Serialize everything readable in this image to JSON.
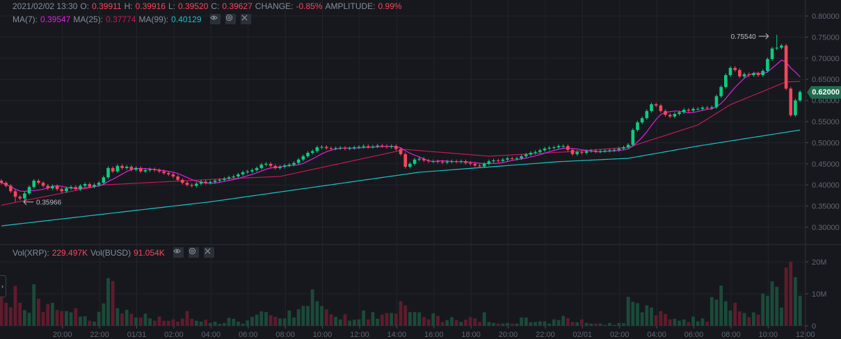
{
  "header": {
    "datetime": "2021/02/02 13:30",
    "o_label": "O:",
    "o": "0.39911",
    "h_label": "H:",
    "h": "0.39916",
    "l_label": "L:",
    "l": "0.39520",
    "c_label": "C:",
    "c": "0.39627",
    "change_label": "CHANGE:",
    "change": "-0.85%",
    "amplitude_label": "AMPLITUDE:",
    "amplitude": "0.99%"
  },
  "ma_legend": {
    "ma7_label": "MA(7):",
    "ma7": "0.39547",
    "ma25_label": "MA(25):",
    "ma25": "0.37774",
    "ma99_label": "MA(99):",
    "ma99": "0.40129"
  },
  "vol_legend": {
    "vol_xrp_label": "Vol(XRP):",
    "vol_xrp": "229.497K",
    "vol_busd_label": "Vol(BUSD)",
    "vol_busd": "91.054K"
  },
  "current_price": "0.62000",
  "colors": {
    "up": "#0ecb81",
    "down": "#f6465d",
    "vol_up": "#1b4a39",
    "vol_down": "#5e1c2c",
    "ma7": "#e41ee4",
    "ma25": "#c2185b",
    "ma99": "#1bc3c3",
    "grid": "#222429",
    "axis_text": "#5e6673"
  },
  "chart_data": {
    "type": "candlestick",
    "interval": "15m",
    "price_axis": {
      "range": [
        0.28,
        0.82
      ],
      "ticks": [
        "0.80000",
        "0.75000",
        "0.70000",
        "0.65000",
        "0.60000",
        "0.55000",
        "0.50000",
        "0.45000",
        "0.40000",
        "0.35000",
        "0.30000"
      ]
    },
    "volume_axis": {
      "range_millions": [
        0,
        22
      ],
      "ticks": [
        {
          "label": "20M",
          "value": 20
        },
        {
          "label": "10M",
          "value": 10
        },
        {
          "label": "0",
          "value": 0
        }
      ]
    },
    "time_labels": [
      "20:00",
      "22:00",
      "01/31",
      "02:00",
      "04:00",
      "06:00",
      "08:00",
      "10:00",
      "12:00",
      "14:00",
      "16:00",
      "18:00",
      "20:00",
      "22:00",
      "02/01",
      "02:00",
      "04:00",
      "06:00",
      "08:00",
      "10:00",
      "12:00"
    ],
    "time_label_first_index": 7,
    "candles_per_label": 8,
    "first_open": 0.41,
    "close": [
      0.405,
      0.398,
      0.385,
      0.372,
      0.368,
      0.38,
      0.395,
      0.41,
      0.405,
      0.398,
      0.392,
      0.397,
      0.39,
      0.385,
      0.392,
      0.395,
      0.39,
      0.398,
      0.402,
      0.396,
      0.4,
      0.405,
      0.418,
      0.44,
      0.432,
      0.445,
      0.44,
      0.443,
      0.436,
      0.44,
      0.432,
      0.435,
      0.437,
      0.435,
      0.432,
      0.428,
      0.425,
      0.42,
      0.412,
      0.405,
      0.4,
      0.398,
      0.403,
      0.408,
      0.405,
      0.407,
      0.41,
      0.412,
      0.415,
      0.418,
      0.42,
      0.425,
      0.43,
      0.432,
      0.435,
      0.44,
      0.448,
      0.45,
      0.445,
      0.44,
      0.443,
      0.446,
      0.448,
      0.452,
      0.46,
      0.468,
      0.476,
      0.48,
      0.489,
      0.49,
      0.487,
      0.486,
      0.487,
      0.488,
      0.486,
      0.487,
      0.489,
      0.49,
      0.492,
      0.49,
      0.491,
      0.493,
      0.492,
      0.49,
      0.492,
      0.485,
      0.473,
      0.443,
      0.45,
      0.46,
      0.462,
      0.458,
      0.456,
      0.456,
      0.455,
      0.453,
      0.455,
      0.456,
      0.455,
      0.456,
      0.452,
      0.45,
      0.446,
      0.444,
      0.45,
      0.456,
      0.458,
      0.457,
      0.46,
      0.463,
      0.462,
      0.463,
      0.468,
      0.472,
      0.476,
      0.478,
      0.482,
      0.486,
      0.488,
      0.489,
      0.492,
      0.492,
      0.483,
      0.473,
      0.478,
      0.476,
      0.48,
      0.481,
      0.479,
      0.48,
      0.481,
      0.482,
      0.483,
      0.486,
      0.489,
      0.495,
      0.53,
      0.548,
      0.558,
      0.575,
      0.591,
      0.588,
      0.575,
      0.566,
      0.562,
      0.568,
      0.572,
      0.578,
      0.576,
      0.58,
      0.58,
      0.583,
      0.582,
      0.584,
      0.61,
      0.632,
      0.66,
      0.677,
      0.672,
      0.657,
      0.662,
      0.66,
      0.664,
      0.66,
      0.67,
      0.698,
      0.723,
      0.725,
      0.73,
      0.628,
      0.565,
      0.6,
      0.62
    ],
    "volume_millions": [
      8.9,
      7.2,
      5.8,
      12.5,
      7.2,
      4.9,
      4.1,
      13,
      8.5,
      4.3,
      6.8,
      7.2,
      4.9,
      4.6,
      4.6,
      4.2,
      5.5,
      2.9,
      3,
      1.6,
      1.3,
      4.4,
      7,
      14.9,
      14,
      5.5,
      3.9,
      5,
      3.8,
      2.6,
      2.6,
      3.8,
      2.3,
      1.6,
      2.9,
      1.6,
      1.6,
      2,
      1.3,
      2.3,
      4.6,
      2.2,
      1.6,
      1.3,
      1.9,
      0.9,
      1.3,
      0.6,
      0.9,
      2.5,
      2.2,
      1.3,
      0.7,
      1.7,
      2.8,
      3.5,
      4.5,
      4.3,
      3.3,
      2.8,
      2.3,
      2.3,
      4.8,
      2.6,
      5.2,
      6.2,
      6.2,
      11.4,
      7.7,
      6.2,
      5.2,
      3.6,
      2.8,
      2,
      3.6,
      1.6,
      1.9,
      2,
      4.8,
      2,
      4.3,
      2.2,
      3.5,
      4,
      4,
      3.8,
      7.7,
      6.4,
      4.3,
      4.3,
      4.2,
      2.7,
      2,
      3.9,
      3.1,
      1.2,
      1.8,
      2.7,
      1.8,
      1.2,
      1.9,
      2.7,
      2.3,
      1.2,
      4.2,
      1.2,
      0.9,
      0.7,
      0.7,
      0.9,
      0.7,
      0.7,
      2.6,
      2.6,
      1.1,
      1.2,
      1.4,
      1.4,
      0.7,
      2,
      1.8,
      3.1,
      2.4,
      1.2,
      1.1,
      2,
      0.9,
      0.7,
      0.7,
      0.7,
      0.3,
      0.9,
      0.3,
      0.9,
      0.8,
      9.1,
      7.5,
      7.1,
      4.2,
      6.4,
      5.7,
      3.3,
      4.6,
      3.7,
      2,
      2.2,
      1.6,
      2,
      1.2,
      2.9,
      1.4,
      2.3,
      1.3,
      9,
      8.2,
      12.6,
      7.7,
      4.8,
      7.2,
      4.5,
      4,
      2.7,
      4.2,
      3.5,
      10.1,
      9.4,
      13.9,
      12.2,
      5.7,
      18.2,
      20.1,
      15.2,
      9.4
    ],
    "ma25_points": [
      [
        0,
        0.352
      ],
      [
        22,
        0.4
      ],
      [
        45,
        0.413
      ],
      [
        60,
        0.42
      ],
      [
        87,
        0.484
      ],
      [
        105,
        0.468
      ],
      [
        123,
        0.479
      ],
      [
        135,
        0.489
      ],
      [
        150,
        0.542
      ],
      [
        157,
        0.59
      ],
      [
        169,
        0.644
      ],
      [
        172,
        0.645
      ]
    ],
    "ma99_points": [
      [
        0,
        0.303
      ],
      [
        45,
        0.36
      ],
      [
        90,
        0.43
      ],
      [
        120,
        0.455
      ],
      [
        135,
        0.463
      ],
      [
        150,
        0.492
      ],
      [
        172,
        0.53
      ]
    ],
    "annotations": {
      "high": {
        "label": "0.75540",
        "index": 167,
        "value": 0.7554
      },
      "low": {
        "label": "0.35966",
        "index": 3,
        "value": 0.35966
      }
    }
  }
}
